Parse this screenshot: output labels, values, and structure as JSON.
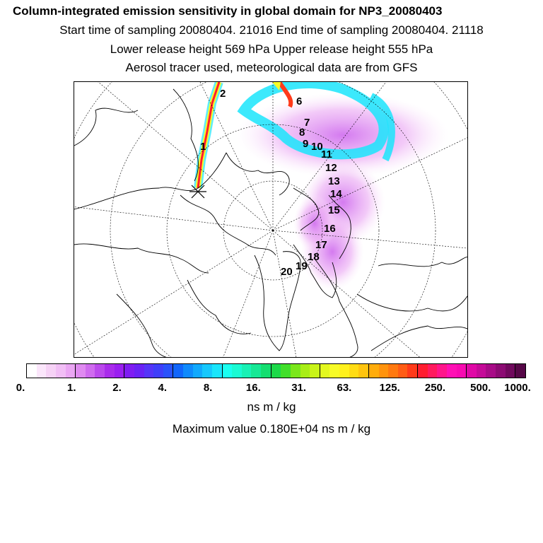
{
  "header": {
    "title": "Column-integrated emission sensitivity in global domain for NP3_20080403",
    "line1": "Start time of sampling 20080404. 21016     End time of sampling 20080404. 21118",
    "line2": "Lower release height  569 hPa        Upper release height  555 hPa",
    "line3": "Aerosol tracer used, meteorological data are from GFS"
  },
  "trajectory_labels": [
    "1",
    "2",
    "6",
    "7",
    "8",
    "9",
    "10",
    "11",
    "12",
    "13",
    "14",
    "15",
    "16",
    "17",
    "18",
    "19",
    "20"
  ],
  "colorbar": {
    "colors": [
      "#ffffff",
      "#fbe6fb",
      "#f6d2f6",
      "#f1bef5",
      "#eaa6f3",
      "#df8af0",
      "#cf6bee",
      "#bb49ec",
      "#a92ceb",
      "#9a1ff0",
      "#7f1cf2",
      "#6a22f5",
      "#5535f8",
      "#3f3ff9",
      "#2a52fa",
      "#1166fb",
      "#0f8afc",
      "#11a9fd",
      "#16c8fd",
      "#1ae5fb",
      "#1afff0",
      "#1afad3",
      "#19f1b5",
      "#16e895",
      "#14de70",
      "#1cd949",
      "#41df2a",
      "#7ae71a",
      "#a8ee16",
      "#c9f419",
      "#e3f81f",
      "#f7fb27",
      "#fff11d",
      "#ffdc14",
      "#ffc40f",
      "#ffac0c",
      "#ff930d",
      "#ff7910",
      "#ff5c15",
      "#ff3a1a",
      "#ff1d30",
      "#ff1a5e",
      "#ff158b",
      "#ff10b4",
      "#f80ab1",
      "#e008a6",
      "#c50a98",
      "#a80b87",
      "#8c0b73",
      "#70095d",
      "#560747"
    ],
    "tick_labels": [
      "0.",
      "1.",
      "2.",
      "4.",
      "8.",
      "16.",
      "31.",
      "63.",
      "125.",
      "250.",
      "500.",
      "1000."
    ],
    "units": "ns m / kg"
  },
  "max_value": "Maximum value  0.180E+04 ns m / kg"
}
